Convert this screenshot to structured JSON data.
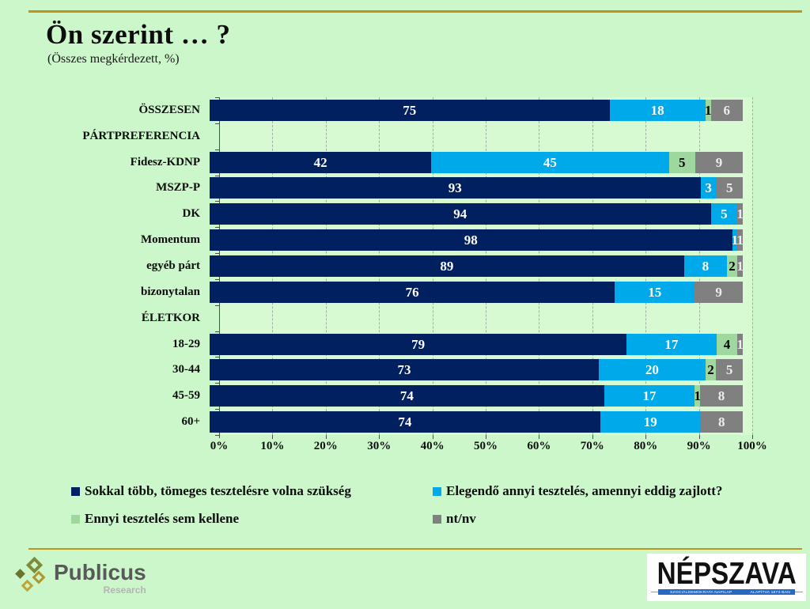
{
  "header": {
    "title": "Ön szerint … ?",
    "subtitle": "(Összes megkérdezett, %)"
  },
  "colors": {
    "page_background": "#CBF7CB",
    "plot_background": "#D7FAD3",
    "separator_gold": "#C0941C",
    "series": [
      "#002060",
      "#00A9E9",
      "#9FD89F",
      "#808080"
    ],
    "value_label_colors": [
      "#FFFFFF",
      "#FFFFFF",
      "#000000",
      "#EDEDED"
    ]
  },
  "chart_data": {
    "type": "bar",
    "orientation": "horizontal",
    "stacked": true,
    "title": "Ön szerint … ?",
    "subtitle": "(Összes megkérdezett, %)",
    "xlim": [
      0,
      100
    ],
    "x_ticks": [
      "0%",
      "10%",
      "20%",
      "30%",
      "40%",
      "50%",
      "60%",
      "70%",
      "80%",
      "90%",
      "100%"
    ],
    "grid": "vertical-dashed",
    "legend_position": "bottom",
    "series_names": [
      "Sokkal több, tömeges tesztelésre volna szükség",
      "Elegendő annyi tesztelés, amennyi eddig zajlott?",
      "Ennyi tesztelés sem kellene",
      "nt/nv"
    ],
    "rows": [
      {
        "label": "ÖSSZESEN",
        "header": false,
        "values": [
          75,
          18,
          1,
          6
        ]
      },
      {
        "label": "PÁRTPREFERENCIA",
        "header": true,
        "values": []
      },
      {
        "label": "Fidesz-KDNP",
        "header": false,
        "values": [
          42,
          45,
          5,
          9
        ]
      },
      {
        "label": "MSZP-P",
        "header": false,
        "values": [
          93,
          3,
          0,
          5
        ]
      },
      {
        "label": "DK",
        "header": false,
        "values": [
          94,
          5,
          0,
          1
        ]
      },
      {
        "label": "Momentum",
        "header": false,
        "values": [
          98,
          1,
          0,
          1
        ]
      },
      {
        "label": "egyéb párt",
        "header": false,
        "values": [
          89,
          8,
          2,
          1
        ]
      },
      {
        "label": "bizonytalan",
        "header": false,
        "values": [
          76,
          15,
          0,
          9
        ]
      },
      {
        "label": "ÉLETKOR",
        "header": true,
        "values": []
      },
      {
        "label": "18-29",
        "header": false,
        "values": [
          79,
          17,
          4,
          1
        ]
      },
      {
        "label": "30-44",
        "header": false,
        "values": [
          73,
          20,
          2,
          5
        ]
      },
      {
        "label": "45-59",
        "header": false,
        "values": [
          74,
          17,
          1,
          8
        ]
      },
      {
        "label": "60+",
        "header": false,
        "values": [
          74,
          19,
          0,
          8
        ]
      }
    ]
  },
  "legend": {
    "items": [
      {
        "label": "Sokkal több, tömeges tesztelésre volna szükség",
        "color": "#002060"
      },
      {
        "label": "Elegendő annyi tesztelés, amennyi eddig zajlott?",
        "color": "#00A9E9"
      },
      {
        "label": "Ennyi tesztelés sem kellene",
        "color": "#9FD89F"
      },
      {
        "label": "nt/nv",
        "color": "#808080"
      }
    ]
  },
  "footer": {
    "publicus": {
      "name": "Publicus",
      "sub": "Research"
    },
    "nepszava": {
      "name": "NÉPSZAVA",
      "tagline_left": "SZOCIÁLDEMOKRATA NAPILAP",
      "tagline_right": "ALAPÍTVA 1873-BAN"
    }
  }
}
